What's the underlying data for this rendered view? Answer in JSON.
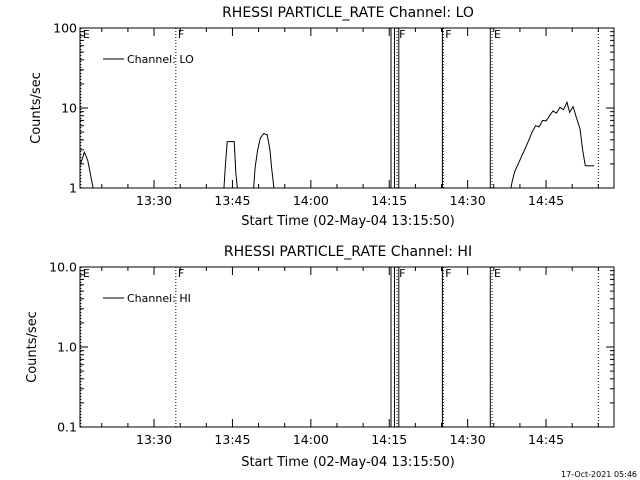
{
  "footer": {
    "timestamp": "17-Oct-2021 05:46"
  },
  "chart_data": [
    {
      "type": "line",
      "title": "RHESSI PARTICLE_RATE Channel: LO",
      "xlabel": "Start Time (02-May-04 13:15:50)",
      "ylabel": "Counts/sec",
      "yscale": "log",
      "ylim": [
        1,
        100
      ],
      "xlim": [
        "13:15:50",
        "14:58:00"
      ],
      "x_tick_labels": [
        "13:30",
        "13:45",
        "14:00",
        "14:15",
        "14:30",
        "14:45"
      ],
      "y_tick_labels": [
        "1",
        "10",
        "100"
      ],
      "legend": {
        "position": "top-left",
        "entries": [
          "Channel: LO"
        ]
      },
      "flags": [
        {
          "label": "E",
          "x": "13:16:00"
        },
        {
          "label": "F",
          "x": "13:34:10"
        },
        {
          "label": "F",
          "x": "14:16:30"
        },
        {
          "label": "F",
          "x": "14:25:20"
        },
        {
          "label": "E",
          "x": "14:34:40"
        }
      ],
      "segments": [
        [
          {
            "x": "13:15:50",
            "y": 1.9
          },
          {
            "x": "13:16:40",
            "y": 2.8
          },
          {
            "x": "13:17:20",
            "y": 2.2
          },
          {
            "x": "13:18:00",
            "y": 1.3
          },
          {
            "x": "13:18:30",
            "y": 0.9
          }
        ],
        [
          {
            "x": "13:43:20",
            "y": 0.9
          },
          {
            "x": "13:43:40",
            "y": 2.0
          },
          {
            "x": "13:44:00",
            "y": 3.8
          },
          {
            "x": "13:45:20",
            "y": 3.8
          },
          {
            "x": "13:45:40",
            "y": 1.5
          },
          {
            "x": "13:46:00",
            "y": 0.9
          }
        ],
        [
          {
            "x": "13:49:00",
            "y": 0.9
          },
          {
            "x": "13:49:20",
            "y": 1.8
          },
          {
            "x": "13:49:50",
            "y": 3.0
          },
          {
            "x": "13:50:20",
            "y": 4.2
          },
          {
            "x": "13:51:00",
            "y": 4.8
          },
          {
            "x": "13:51:40",
            "y": 4.6
          },
          {
            "x": "13:52:10",
            "y": 3.0
          },
          {
            "x": "13:52:30",
            "y": 1.8
          },
          {
            "x": "13:53:00",
            "y": 0.9
          }
        ],
        [
          {
            "x": "14:38:10",
            "y": 0.9
          },
          {
            "x": "14:38:30",
            "y": 1.2
          },
          {
            "x": "14:39:00",
            "y": 1.6
          },
          {
            "x": "14:39:40",
            "y": 2.0
          },
          {
            "x": "14:40:20",
            "y": 2.5
          },
          {
            "x": "14:41:00",
            "y": 3.1
          },
          {
            "x": "14:41:40",
            "y": 3.9
          },
          {
            "x": "14:42:20",
            "y": 5.0
          },
          {
            "x": "14:43:00",
            "y": 6.0
          },
          {
            "x": "14:43:40",
            "y": 5.8
          },
          {
            "x": "14:44:20",
            "y": 7.0
          },
          {
            "x": "14:45:00",
            "y": 6.9
          },
          {
            "x": "14:45:40",
            "y": 8.0
          },
          {
            "x": "14:46:20",
            "y": 9.2
          },
          {
            "x": "14:47:00",
            "y": 8.6
          },
          {
            "x": "14:47:40",
            "y": 10.2
          },
          {
            "x": "14:48:20",
            "y": 9.5
          },
          {
            "x": "14:49:00",
            "y": 11.8
          },
          {
            "x": "14:49:30",
            "y": 8.8
          },
          {
            "x": "14:50:10",
            "y": 10.4
          },
          {
            "x": "14:50:50",
            "y": 7.5
          },
          {
            "x": "14:51:30",
            "y": 5.5
          },
          {
            "x": "14:52:00",
            "y": 3.0
          },
          {
            "x": "14:52:30",
            "y": 1.9
          },
          {
            "x": "14:54:10",
            "y": 1.9
          }
        ]
      ]
    },
    {
      "type": "line",
      "title": "RHESSI PARTICLE_RATE Channel: HI",
      "xlabel": "Start Time (02-May-04 13:15:50)",
      "ylabel": "Counts/sec",
      "yscale": "log",
      "ylim": [
        0.1,
        10
      ],
      "xlim": [
        "13:15:50",
        "14:58:00"
      ],
      "x_tick_labels": [
        "13:30",
        "13:45",
        "14:00",
        "14:15",
        "14:30",
        "14:45"
      ],
      "y_tick_labels": [
        "0.1",
        "1.0",
        "10.0"
      ],
      "legend": {
        "position": "top-left",
        "entries": [
          "Channel: HI"
        ]
      },
      "flags": [
        {
          "label": "E",
          "x": "13:16:00"
        },
        {
          "label": "F",
          "x": "13:34:10"
        },
        {
          "label": "F",
          "x": "14:16:30"
        },
        {
          "label": "F",
          "x": "14:25:20"
        },
        {
          "label": "E",
          "x": "14:34:40"
        }
      ],
      "segments": []
    }
  ]
}
